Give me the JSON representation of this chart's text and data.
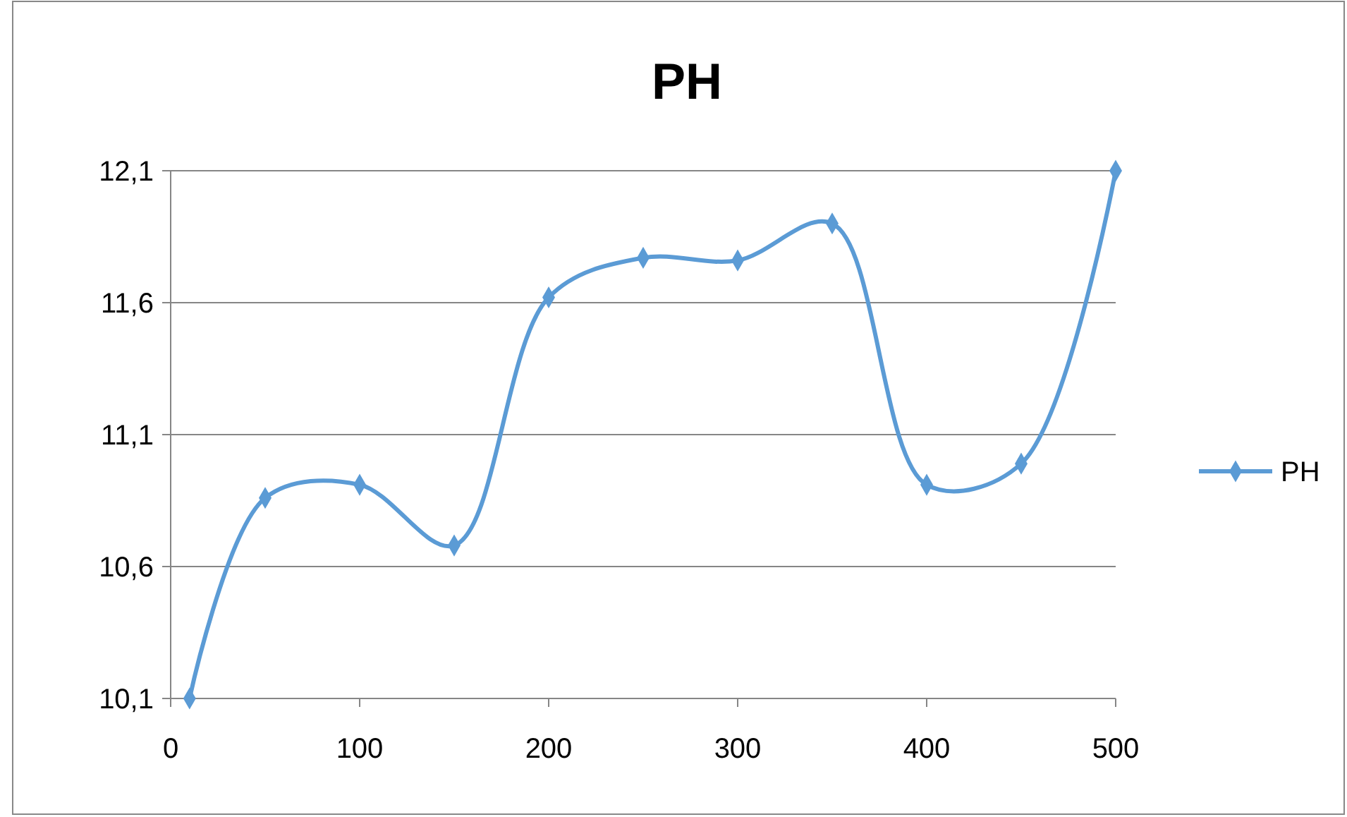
{
  "chart_data": {
    "type": "line",
    "title": "PH",
    "x": [
      10,
      50,
      100,
      150,
      200,
      250,
      300,
      350,
      400,
      450,
      500
    ],
    "series": [
      {
        "name": "PH",
        "color": "#5b9bd5",
        "values": [
          10.1,
          10.86,
          10.91,
          10.68,
          11.62,
          11.77,
          11.76,
          11.9,
          10.91,
          10.99,
          12.1
        ]
      }
    ],
    "xlim": [
      0,
      500
    ],
    "xticks": [
      0,
      100,
      200,
      300,
      400,
      500
    ],
    "ylim": [
      10.1,
      12.1
    ],
    "yticks": [
      {
        "value": 10.1,
        "label": "10,1"
      },
      {
        "value": 10.6,
        "label": "10,6"
      },
      {
        "value": 11.1,
        "label": "11,1"
      },
      {
        "value": 11.6,
        "label": "11,6"
      },
      {
        "value": 12.1,
        "label": "12,1"
      }
    ],
    "grid": "y",
    "legend": "right",
    "marker": "diamond",
    "line_style": "solid"
  }
}
